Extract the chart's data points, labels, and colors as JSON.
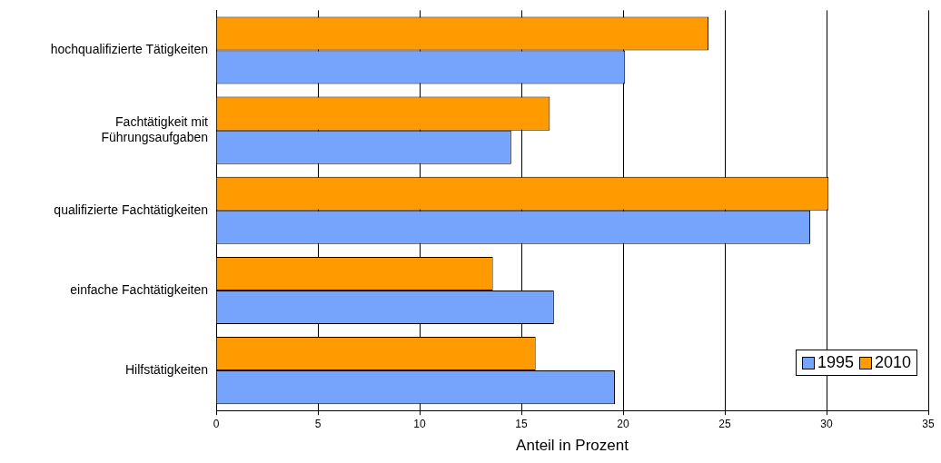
{
  "chart_data": {
    "type": "bar",
    "orientation": "horizontal",
    "xlabel": "Anteil in Prozent",
    "categories": [
      "hochqualifizierte Tätigkeiten",
      "Fachtätigkeit mit Führungsaufgaben",
      "qualifizierte Fachtätigkeiten",
      "einfache Fachtätigkeiten",
      "Hilfstätigkeiten"
    ],
    "series": [
      {
        "name": "1995",
        "color": "#76a3fc",
        "values": [
          20.1,
          14.5,
          29.2,
          16.6,
          19.6
        ]
      },
      {
        "name": "2010",
        "color": "#ff9a00",
        "values": [
          24.2,
          16.4,
          30.1,
          13.6,
          15.7
        ]
      }
    ],
    "xlim": [
      0,
      35
    ],
    "xticks": [
      0,
      5,
      10,
      15,
      20,
      25,
      30,
      35
    ],
    "grid": "x",
    "legend": "bottom right"
  }
}
